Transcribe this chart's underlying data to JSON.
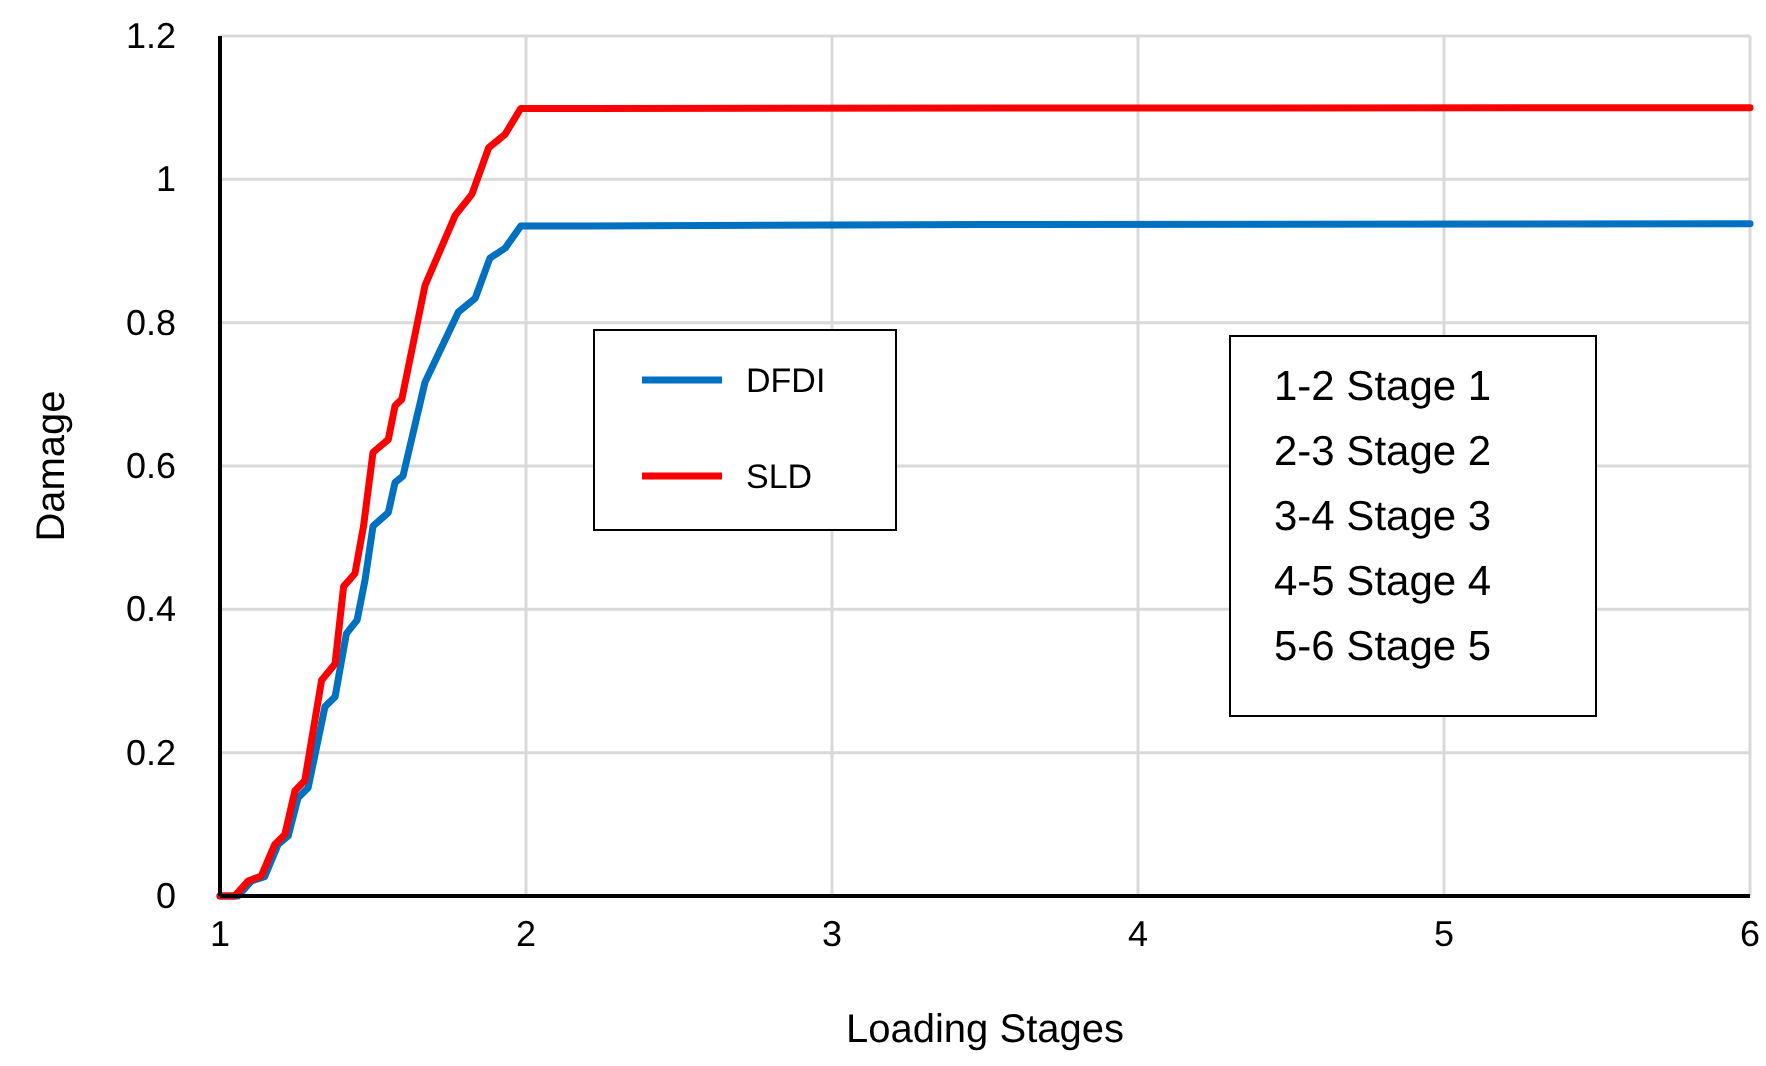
{
  "chart_data": {
    "type": "line",
    "xlabel": "Loading Stages",
    "ylabel": "Damage",
    "xlim": [
      1,
      6
    ],
    "xticks": [
      1,
      2,
      3,
      4,
      5,
      6
    ],
    "ylim": [
      0,
      1.2
    ],
    "yticks": [
      0,
      0.2,
      0.4,
      0.6,
      0.8,
      1,
      1.2
    ],
    "grid": true,
    "legend": "center left",
    "marker": "none",
    "line_style": "solid",
    "series": [
      {
        "name": "DFDI",
        "color": "#0070c0",
        "x": [
          1,
          1.059,
          1.103,
          1.146,
          1.19,
          1.223,
          1.255,
          1.288,
          1.343,
          1.376,
          1.413,
          1.448,
          1.474,
          1.5,
          1.55,
          1.572,
          1.598,
          1.67,
          1.779,
          1.834,
          1.882,
          1.932,
          1.983,
          2.2,
          3.5,
          6
        ],
        "values": [
          0,
          0,
          0.021,
          0.027,
          0.072,
          0.084,
          0.137,
          0.151,
          0.264,
          0.278,
          0.366,
          0.385,
          0.441,
          0.516,
          0.535,
          0.577,
          0.586,
          0.717,
          0.815,
          0.834,
          0.89,
          0.904,
          0.935,
          0.935,
          0.937,
          0.938
        ]
      },
      {
        "name": "SLD",
        "color": "#ff0000",
        "x": [
          1,
          1.048,
          1.092,
          1.135,
          1.179,
          1.212,
          1.245,
          1.277,
          1.332,
          1.376,
          1.404,
          1.441,
          1.469,
          1.5,
          1.55,
          1.572,
          1.594,
          1.67,
          1.769,
          1.823,
          1.878,
          1.932,
          1.983,
          2.2,
          6
        ],
        "values": [
          0,
          0,
          0.021,
          0.028,
          0.072,
          0.086,
          0.147,
          0.161,
          0.301,
          0.324,
          0.432,
          0.45,
          0.516,
          0.619,
          0.637,
          0.684,
          0.693,
          0.852,
          0.95,
          0.979,
          1.044,
          1.063,
          1.099,
          1.099,
          1.1
        ]
      }
    ],
    "annotations": [
      "1-2 Stage 1",
      "2-3 Stage 2",
      "3-4 Stage 3",
      "4-5 Stage 4",
      "5-6 Stage 5"
    ]
  }
}
